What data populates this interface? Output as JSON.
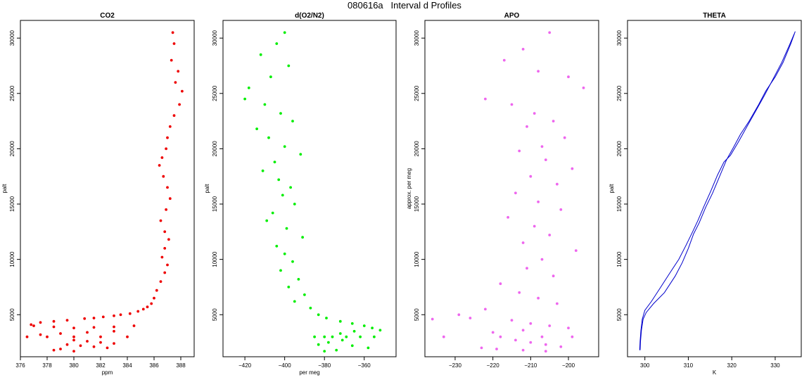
{
  "title": "080616a   Interval d Profiles",
  "chart_data": [
    {
      "type": "scatter",
      "title": "CO2",
      "xlabel": "ppm",
      "ylabel": "palt",
      "xlim": [
        376,
        389
      ],
      "ylim": [
        1200,
        31600
      ],
      "xticks": [
        376,
        378,
        380,
        382,
        384,
        386,
        388
      ],
      "yticks": [
        5000,
        10000,
        15000,
        20000,
        25000,
        30000
      ],
      "color": "#ee0000",
      "series": [
        {
          "x": [
            387.4,
            387.5,
            387.3,
            387.8,
            387.6,
            388.1,
            387.9,
            387.5,
            387.2,
            387.0,
            386.9,
            386.6,
            386.4,
            386.7,
            387.0,
            387.2,
            386.9,
            386.5,
            386.8,
            387.1,
            386.8,
            386.6,
            387.0,
            386.8,
            386.5,
            386.2,
            386.0,
            385.8,
            385.5,
            385.2,
            384.8,
            384.2,
            383.5,
            383.0,
            382.2,
            381.5,
            380.8,
            379.5,
            378.5,
            377.5,
            376.8,
            377.0,
            378.5,
            380.0,
            381.5,
            383.0,
            384.5,
            383.0,
            381.0,
            379.0,
            377.5,
            376.5,
            378.0,
            380.0,
            382.0,
            384.0,
            380.0,
            381.0,
            382.0,
            383.0,
            379.5,
            380.5,
            381.5,
            382.5,
            379.0,
            378.5,
            380.0
          ],
          "y": [
            30500,
            29500,
            28000,
            27000,
            26000,
            25200,
            24000,
            23000,
            22000,
            21000,
            20000,
            19200,
            18500,
            17500,
            16500,
            15500,
            14500,
            13500,
            12500,
            11800,
            11000,
            10200,
            9500,
            8800,
            8000,
            7200,
            6500,
            6000,
            5700,
            5500,
            5300,
            5100,
            5000,
            4900,
            4800,
            4700,
            4650,
            4500,
            4400,
            4300,
            4100,
            4000,
            3900,
            3800,
            3850,
            3900,
            4000,
            3500,
            3400,
            3300,
            3200,
            3000,
            3000,
            3000,
            3000,
            3000,
            2700,
            2600,
            2500,
            2400,
            2300,
            2200,
            2100,
            2000,
            1900,
            1800,
            1700
          ]
        }
      ]
    },
    {
      "type": "scatter",
      "title": "d(O2/N2)",
      "xlabel": "per meg",
      "ylabel": "palt",
      "xlim": [
        -431,
        -344
      ],
      "ylim": [
        1200,
        31600
      ],
      "xticks": [
        -420,
        -400,
        -380,
        -360
      ],
      "yticks": [
        5000,
        10000,
        15000,
        20000,
        25000,
        30000
      ],
      "color": "#00ee00",
      "series": [
        {
          "x": [
            -400,
            -404,
            -412,
            -398,
            -407,
            -418,
            -420,
            -410,
            -402,
            -396,
            -414,
            -408,
            -400,
            -392,
            -405,
            -411,
            -403,
            -397,
            -401,
            -395,
            -406,
            -409,
            -399,
            -391,
            -404,
            -400,
            -396,
            -402,
            -393,
            -398,
            -390,
            -395,
            -387,
            -383,
            -379,
            -372,
            -366,
            -360,
            -356,
            -352,
            -365,
            -372,
            -380,
            -385,
            -376,
            -369,
            -362,
            -355,
            -371,
            -378,
            -383,
            -366,
            -358,
            -374,
            -380
          ],
          "y": [
            30500,
            29500,
            28500,
            27500,
            26500,
            25500,
            24500,
            24000,
            23200,
            22500,
            21800,
            21000,
            20200,
            19500,
            18800,
            18000,
            17200,
            16500,
            15800,
            15000,
            14200,
            13500,
            12800,
            12000,
            11200,
            10500,
            9800,
            9000,
            8200,
            7500,
            6800,
            6200,
            5600,
            5000,
            4700,
            4400,
            4200,
            4000,
            3800,
            3600,
            3500,
            3300,
            3000,
            3000,
            3000,
            3000,
            3000,
            3000,
            2700,
            2500,
            2300,
            2200,
            2000,
            1800,
            1700
          ]
        }
      ]
    },
    {
      "type": "scatter",
      "title": "APO",
      "xlabel": "",
      "ylabel": "approx. per meg",
      "xlim": [
        -238,
        -192
      ],
      "ylim": [
        1200,
        31600
      ],
      "xticks": [
        -230,
        -220,
        -210,
        -200
      ],
      "yticks": [
        5000,
        10000,
        15000,
        20000,
        25000,
        30000
      ],
      "color": "#ee66ee",
      "series": [
        {
          "x": [
            -205,
            -212,
            -217,
            -208,
            -200,
            -196,
            -222,
            -215,
            -209,
            -204,
            -211,
            -201,
            -207,
            -213,
            -206,
            -199,
            -210,
            -203,
            -214,
            -208,
            -202,
            -216,
            -209,
            -205,
            -212,
            -198,
            -207,
            -211,
            -204,
            -218,
            -213,
            -208,
            -203,
            -222,
            -229,
            -226,
            -215,
            -210,
            -205,
            -200,
            -212,
            -220,
            -233,
            -236,
            -218,
            -207,
            -199,
            -214,
            -210,
            -206,
            -202,
            -223,
            -219,
            -212,
            -206
          ],
          "y": [
            30500,
            29000,
            28000,
            27000,
            26500,
            25500,
            24500,
            24000,
            23200,
            22500,
            22000,
            21000,
            20200,
            19800,
            19000,
            18200,
            17500,
            16800,
            16000,
            15200,
            14500,
            13800,
            13000,
            12200,
            11500,
            10800,
            10000,
            9200,
            8500,
            7800,
            7000,
            6500,
            6000,
            5500,
            5000,
            4700,
            4500,
            4200,
            4000,
            3800,
            3600,
            3400,
            3000,
            4600,
            3000,
            3000,
            3000,
            2700,
            2500,
            2300,
            2100,
            2000,
            1900,
            1800,
            1700
          ]
        }
      ]
    },
    {
      "type": "line",
      "title": "THETA",
      "xlabel": "K",
      "ylabel": "palt",
      "xlim": [
        296,
        336
      ],
      "ylim": [
        1200,
        31600
      ],
      "xticks": [
        300,
        310,
        320,
        330
      ],
      "yticks": [
        5000,
        10000,
        15000,
        20000,
        25000,
        30000
      ],
      "color": "#0000cc",
      "series": [
        {
          "x": [
            298.9,
            299.0,
            299.2,
            299.6,
            300.3,
            302.0,
            304.5,
            307.0,
            308.6,
            310.0,
            311.2,
            312.5,
            314.0,
            315.6,
            317.2,
            318.8,
            320.5,
            322.0,
            324.0,
            326.2,
            327.8,
            330.0,
            331.8,
            333.6,
            334.6
          ],
          "y": [
            1800,
            2600,
            3600,
            4600,
            5200,
            6000,
            7000,
            8500,
            9700,
            11000,
            12300,
            13300,
            14700,
            16000,
            17500,
            19000,
            20200,
            21300,
            22500,
            24000,
            25200,
            26500,
            27800,
            29500,
            30600
          ]
        },
        {
          "x": [
            298.8,
            298.9,
            299.1,
            299.4,
            300.0,
            301.5,
            303.5,
            305.8,
            307.8,
            309.5,
            311.0,
            312.2,
            313.6,
            315.2,
            316.7,
            318.2,
            319.7,
            321.5,
            323.5,
            325.5,
            327.5,
            329.5,
            331.5,
            333.2,
            334.4
          ],
          "y": [
            1800,
            2600,
            3600,
            4600,
            5400,
            6200,
            7400,
            8800,
            10000,
            11300,
            12500,
            13500,
            14800,
            16200,
            17600,
            18800,
            19400,
            20600,
            22000,
            23400,
            24800,
            26300,
            27800,
            29300,
            30400
          ]
        }
      ]
    }
  ]
}
